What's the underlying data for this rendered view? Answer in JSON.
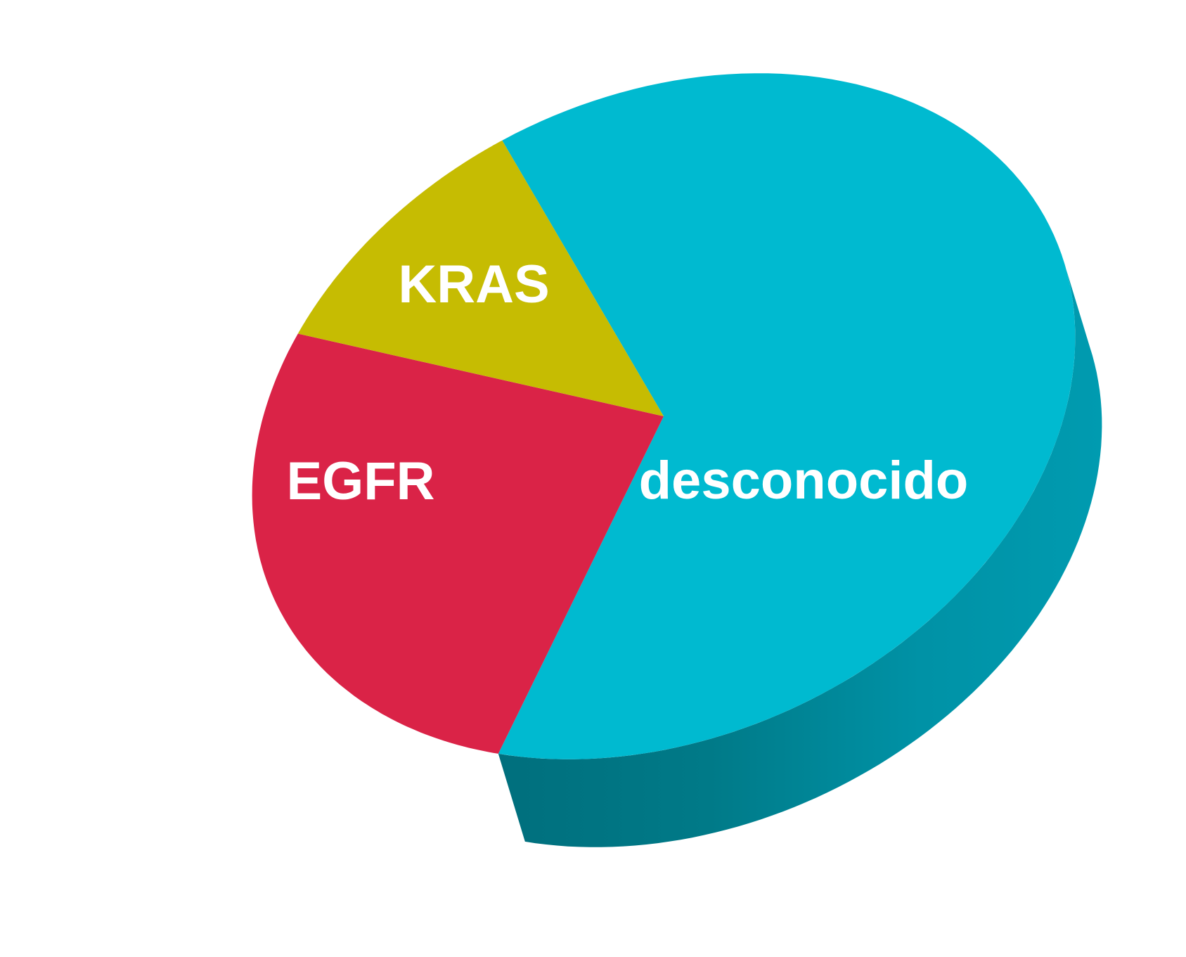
{
  "chart_data": {
    "type": "pie",
    "style": "3d",
    "categories": [
      "desconocido",
      "KRAS",
      "EGFR"
    ],
    "values": [
      63,
      26,
      11
    ],
    "colors": {
      "desconocido": "#00BAD0",
      "KRAS": "#DA2347",
      "EGFR": "#C6BC02"
    },
    "side_colors": {
      "desconocido_dark": "#006F7D",
      "desconocido_mid": "#0089A0",
      "desconocido_light": "#009CB0",
      "EGFR": "#7D7200"
    }
  }
}
